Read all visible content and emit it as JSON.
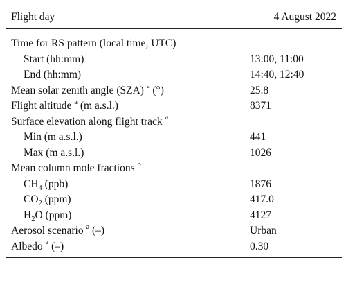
{
  "table": {
    "header": {
      "label": "Flight day",
      "value": "4 August 2022"
    },
    "time_section": {
      "label": "Time for RS pattern (local time, UTC)",
      "start_label": "Start (hh:mm)",
      "start_value": "13:00, 11:00",
      "end_label": "End (hh:mm)",
      "end_value": "14:40, 12:40"
    },
    "sza": {
      "label": "Mean solar zenith angle (SZA)",
      "note": "a",
      "unit": "(°)",
      "value": "25.8"
    },
    "altitude": {
      "label": "Flight altitude",
      "note": "a",
      "unit": "(m a.s.l.)",
      "value": "8371"
    },
    "surface": {
      "label": "Surface elevation along flight track",
      "note": "a",
      "min_label": "Min (m a.s.l.)",
      "min_value": "441",
      "max_label": "Max (m a.s.l.)",
      "max_value": "1026"
    },
    "column": {
      "label": "Mean column mole fractions",
      "note": "b",
      "ch4": {
        "base": "CH",
        "sub": "4",
        "unit": "(ppb)",
        "value": "1876"
      },
      "co2": {
        "base": "CO",
        "sub": "2",
        "unit": "(ppm)",
        "value": "417.0"
      },
      "h2o": {
        "base": "H",
        "sub": "2",
        "rest": "O",
        "unit": "(ppm)",
        "value": "4127"
      }
    },
    "aerosol": {
      "label": "Aerosol scenario",
      "note": "a",
      "unit": "(–)",
      "value": "Urban"
    },
    "albedo": {
      "label": "Albedo",
      "note": "a",
      "unit": "(–)",
      "value": "0.30"
    }
  }
}
